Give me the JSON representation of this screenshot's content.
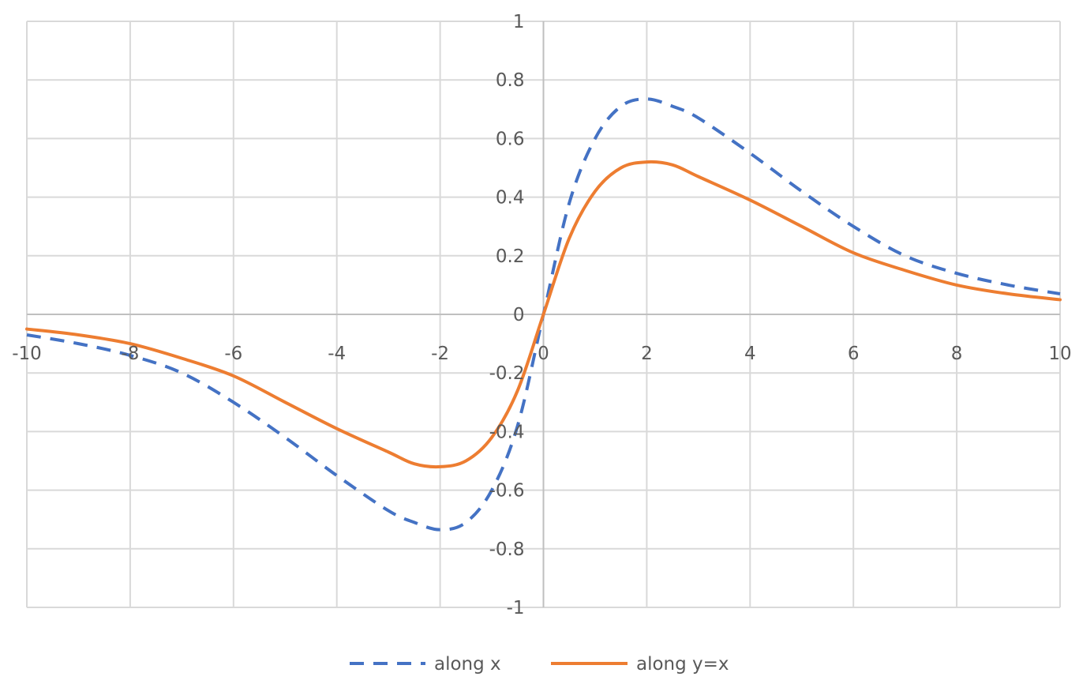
{
  "chart_data": {
    "type": "line",
    "title": "",
    "xlabel": "",
    "ylabel": "",
    "xlim": [
      -10,
      10
    ],
    "ylim": [
      -1,
      1
    ],
    "x_ticks": [
      -10,
      -8,
      -6,
      -4,
      -2,
      0,
      2,
      4,
      6,
      8,
      10
    ],
    "y_ticks": [
      -1,
      -0.8,
      -0.6,
      -0.4,
      -0.2,
      0,
      0.2,
      0.4,
      0.6,
      0.8,
      1
    ],
    "x_tick_labels": [
      "-10",
      "-8",
      "-6",
      "-4",
      "-2",
      "0",
      "2",
      "4",
      "6",
      "8",
      "10"
    ],
    "y_tick_labels": [
      "-1",
      "-0.8",
      "-0.6",
      "-0.4",
      "-0.2",
      "0",
      "0.2",
      "0.4",
      "0.6",
      "0.8",
      "1"
    ],
    "grid": true,
    "legend_position": "bottom",
    "series": [
      {
        "name": "along x",
        "color": "#4472C4",
        "style": "dashed",
        "x": [
          -10,
          -9,
          -8,
          -7,
          -6,
          -5,
          -4,
          -3,
          -2.5,
          -2,
          -1.5,
          -1,
          -0.5,
          0,
          0.5,
          1,
          1.5,
          2,
          2.5,
          3,
          4,
          5,
          6,
          7,
          8,
          9,
          10
        ],
        "y": [
          -0.07,
          -0.1,
          -0.14,
          -0.2,
          -0.3,
          -0.42,
          -0.55,
          -0.67,
          -0.71,
          -0.735,
          -0.71,
          -0.6,
          -0.38,
          0,
          0.38,
          0.6,
          0.71,
          0.735,
          0.71,
          0.67,
          0.55,
          0.42,
          0.3,
          0.2,
          0.14,
          0.1,
          0.07
        ]
      },
      {
        "name": "along y=x",
        "color": "#ED7D31",
        "style": "solid",
        "x": [
          -10,
          -9,
          -8,
          -7,
          -6,
          -5,
          -4,
          -3,
          -2.5,
          -2,
          -1.5,
          -1,
          -0.5,
          0,
          0.5,
          1,
          1.5,
          2,
          2.5,
          3,
          4,
          5,
          6,
          7,
          8,
          9,
          10
        ],
        "y": [
          -0.05,
          -0.07,
          -0.1,
          -0.15,
          -0.21,
          -0.3,
          -0.39,
          -0.47,
          -0.51,
          -0.52,
          -0.5,
          -0.42,
          -0.26,
          0,
          0.26,
          0.42,
          0.5,
          0.52,
          0.51,
          0.47,
          0.39,
          0.3,
          0.21,
          0.15,
          0.1,
          0.07,
          0.05
        ]
      }
    ]
  }
}
